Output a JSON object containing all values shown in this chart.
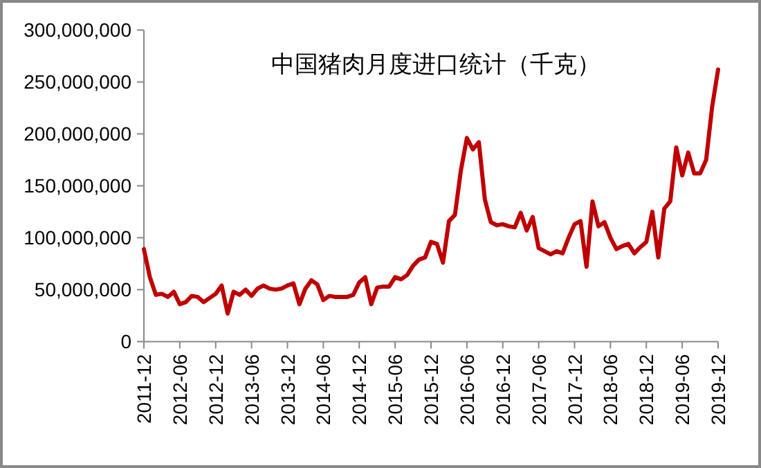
{
  "chart_data": {
    "type": "line",
    "title": "中国猪肉月度进口统计（千克）",
    "x": [
      "2011-12",
      "2012-01",
      "2012-02",
      "2012-03",
      "2012-04",
      "2012-05",
      "2012-06",
      "2012-07",
      "2012-08",
      "2012-09",
      "2012-10",
      "2012-11",
      "2012-12",
      "2013-01",
      "2013-02",
      "2013-03",
      "2013-04",
      "2013-05",
      "2013-06",
      "2013-07",
      "2013-08",
      "2013-09",
      "2013-10",
      "2013-11",
      "2013-12",
      "2014-01",
      "2014-02",
      "2014-03",
      "2014-04",
      "2014-05",
      "2014-06",
      "2014-07",
      "2014-08",
      "2014-09",
      "2014-10",
      "2014-11",
      "2014-12",
      "2015-01",
      "2015-02",
      "2015-03",
      "2015-04",
      "2015-05",
      "2015-06",
      "2015-07",
      "2015-08",
      "2015-09",
      "2015-10",
      "2015-11",
      "2015-12",
      "2016-01",
      "2016-02",
      "2016-03",
      "2016-04",
      "2016-05",
      "2016-06",
      "2016-07",
      "2016-08",
      "2016-09",
      "2016-10",
      "2016-11",
      "2016-12",
      "2017-01",
      "2017-02",
      "2017-03",
      "2017-04",
      "2017-05",
      "2017-06",
      "2017-07",
      "2017-08",
      "2017-09",
      "2017-10",
      "2017-11",
      "2017-12",
      "2018-01",
      "2018-02",
      "2018-03",
      "2018-04",
      "2018-05",
      "2018-06",
      "2018-07",
      "2018-08",
      "2018-09",
      "2018-10",
      "2018-11",
      "2018-12",
      "2019-01",
      "2019-02",
      "2019-03",
      "2019-04",
      "2019-05",
      "2019-06",
      "2019-07",
      "2019-08",
      "2019-09",
      "2019-10",
      "2019-11",
      "2019-12"
    ],
    "series": [
      {
        "color": "#c00000",
        "values": [
          89000000,
          62000000,
          45000000,
          46000000,
          43000000,
          48000000,
          36000000,
          38000000,
          44000000,
          43000000,
          38000000,
          42000000,
          46000000,
          54000000,
          27000000,
          48000000,
          45000000,
          50000000,
          44000000,
          51000000,
          54000000,
          51000000,
          50000000,
          51000000,
          54000000,
          56000000,
          36000000,
          51000000,
          59000000,
          55000000,
          40000000,
          44000000,
          43000000,
          43000000,
          43000000,
          45000000,
          57000000,
          62000000,
          36000000,
          52000000,
          53000000,
          53000000,
          62000000,
          60000000,
          64000000,
          73000000,
          79000000,
          81000000,
          96000000,
          94000000,
          76000000,
          116000000,
          122000000,
          165000000,
          196000000,
          185000000,
          192000000,
          137000000,
          115000000,
          112000000,
          113000000,
          111000000,
          110000000,
          124000000,
          107000000,
          120000000,
          90000000,
          87000000,
          84000000,
          87000000,
          85000000,
          100000000,
          113000000,
          116000000,
          72000000,
          135000000,
          111000000,
          115000000,
          100000000,
          89000000,
          92000000,
          94000000,
          85000000,
          91000000,
          96000000,
          125000000,
          81000000,
          128000000,
          135000000,
          187000000,
          160000000,
          182000000,
          162000000,
          162000000,
          175000000,
          226000000,
          262000000
        ]
      }
    ],
    "xlim": [
      "2011-12",
      "2019-12"
    ],
    "xticks": [
      "2011-12",
      "2012-06",
      "2012-12",
      "2013-06",
      "2013-12",
      "2014-06",
      "2014-12",
      "2015-06",
      "2015-12",
      "2016-06",
      "2016-12",
      "2017-06",
      "2017-12",
      "2018-06",
      "2018-12",
      "2019-06",
      "2019-12"
    ],
    "ylim": [
      0,
      300000000
    ],
    "yticks": [
      {
        "value": 0,
        "label": "0"
      },
      {
        "value": 50000000,
        "label": "50,000,000"
      },
      {
        "value": 100000000,
        "label": "100,000,000"
      },
      {
        "value": 150000000,
        "label": "150,000,000"
      },
      {
        "value": 200000000,
        "label": "200,000,000"
      },
      {
        "value": 250000000,
        "label": "250,000,000"
      },
      {
        "value": 300000000,
        "label": "300,000,000"
      }
    ],
    "grid": false,
    "marker": "none",
    "line_style": "solid"
  }
}
